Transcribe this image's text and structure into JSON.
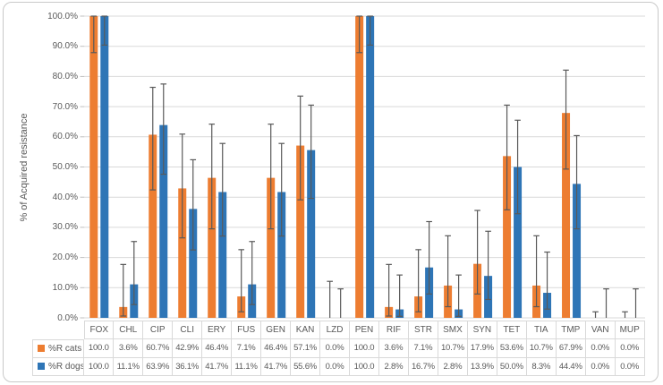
{
  "figure": {
    "y_axis_title": "% of Acquired resistance",
    "y_tick_labels": [
      "100.0%",
      "90.0%",
      "80.0%",
      "70.0%",
      "60.0%",
      "50.0%",
      "40.0%",
      "30.0%",
      "20.0%",
      "10.0%",
      "0.0%"
    ]
  },
  "chart_data": {
    "type": "bar",
    "title": "",
    "xlabel": "",
    "ylabel": "% of Acquired resistance",
    "ylim": [
      0,
      100
    ],
    "y_tick_step": 10,
    "grid": true,
    "error_bars": "95% confidence interval whiskers on each bar",
    "legend_position": "row headers of data table below chart",
    "categories": [
      "FOX",
      "CHL",
      "CIP",
      "CLI",
      "ERY",
      "FUS",
      "GEN",
      "KAN",
      "LZD",
      "PEN",
      "RIF",
      "STR",
      "SMX",
      "SYN",
      "TET",
      "TIA",
      "TMP",
      "VAN",
      "MUP"
    ],
    "series": [
      {
        "name": "%R cats",
        "color": "#ED7D31",
        "values": [
          100.0,
          3.6,
          60.7,
          42.9,
          46.4,
          7.1,
          46.4,
          57.1,
          0.0,
          100.0,
          3.6,
          7.1,
          10.7,
          17.9,
          53.6,
          10.7,
          67.9,
          0.0,
          0.0
        ],
        "labels": [
          "100.0",
          "3.6%",
          "60.7%",
          "42.9%",
          "46.4%",
          "7.1%",
          "46.4%",
          "57.1%",
          "0.0%",
          "100.0",
          "3.6%",
          "7.1%",
          "10.7%",
          "17.9%",
          "53.6%",
          "10.7%",
          "67.9%",
          "0.0%",
          "0.0%"
        ],
        "err_low": [
          87.9,
          0.6,
          42.4,
          26.5,
          29.5,
          2.0,
          29.5,
          39.1,
          0.0,
          87.9,
          0.6,
          2.0,
          3.7,
          7.9,
          35.8,
          3.7,
          49.3,
          0.0,
          0.0
        ],
        "err_high": [
          100.0,
          17.7,
          76.4,
          60.9,
          64.2,
          22.6,
          64.2,
          73.5,
          12.1,
          100.0,
          17.7,
          22.6,
          27.2,
          35.6,
          70.5,
          27.2,
          82.1,
          2.0,
          2.0
        ]
      },
      {
        "name": "%R dogs",
        "color": "#2E75B6",
        "values": [
          100.0,
          11.1,
          63.9,
          36.1,
          41.7,
          11.1,
          41.7,
          55.6,
          0.0,
          100.0,
          2.8,
          16.7,
          2.8,
          13.9,
          50.0,
          8.3,
          44.4,
          0.0,
          0.0
        ],
        "labels": [
          "100.0",
          "11.1%",
          "63.9%",
          "36.1%",
          "41.7%",
          "11.1%",
          "41.7%",
          "55.6%",
          "0.0%",
          "100.0",
          "2.8%",
          "16.7%",
          "2.8%",
          "13.9%",
          "50.0%",
          "8.3%",
          "44.4%",
          "0.0%",
          "0.0%"
        ],
        "err_low": [
          90.4,
          4.4,
          47.6,
          22.5,
          27.1,
          4.4,
          27.1,
          39.6,
          0.0,
          90.4,
          0.5,
          7.9,
          0.5,
          6.1,
          34.5,
          2.9,
          29.5,
          0.0,
          0.0
        ],
        "err_high": [
          100.0,
          25.3,
          77.5,
          52.4,
          57.8,
          25.3,
          57.8,
          70.5,
          9.6,
          100.0,
          14.2,
          31.9,
          14.2,
          28.7,
          65.5,
          21.8,
          60.4,
          9.6,
          9.6
        ]
      }
    ],
    "colors": {
      "cats": "#ED7D31",
      "dogs": "#2E75B6",
      "error_bar": "#595959",
      "gridline": "#D9D9D9",
      "tick_mark": "#BFBFBF",
      "axis_text": "#595959",
      "table_border": "#D9D9D9",
      "frame_border": "#C9C9C9"
    }
  }
}
